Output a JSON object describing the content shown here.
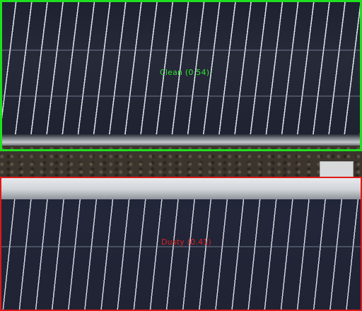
{
  "detections": [
    {
      "label": "Clean (0.54)",
      "color": "#1fe01f"
    },
    {
      "label": "Dusty (0.41)",
      "color": "#e01818"
    }
  ]
}
